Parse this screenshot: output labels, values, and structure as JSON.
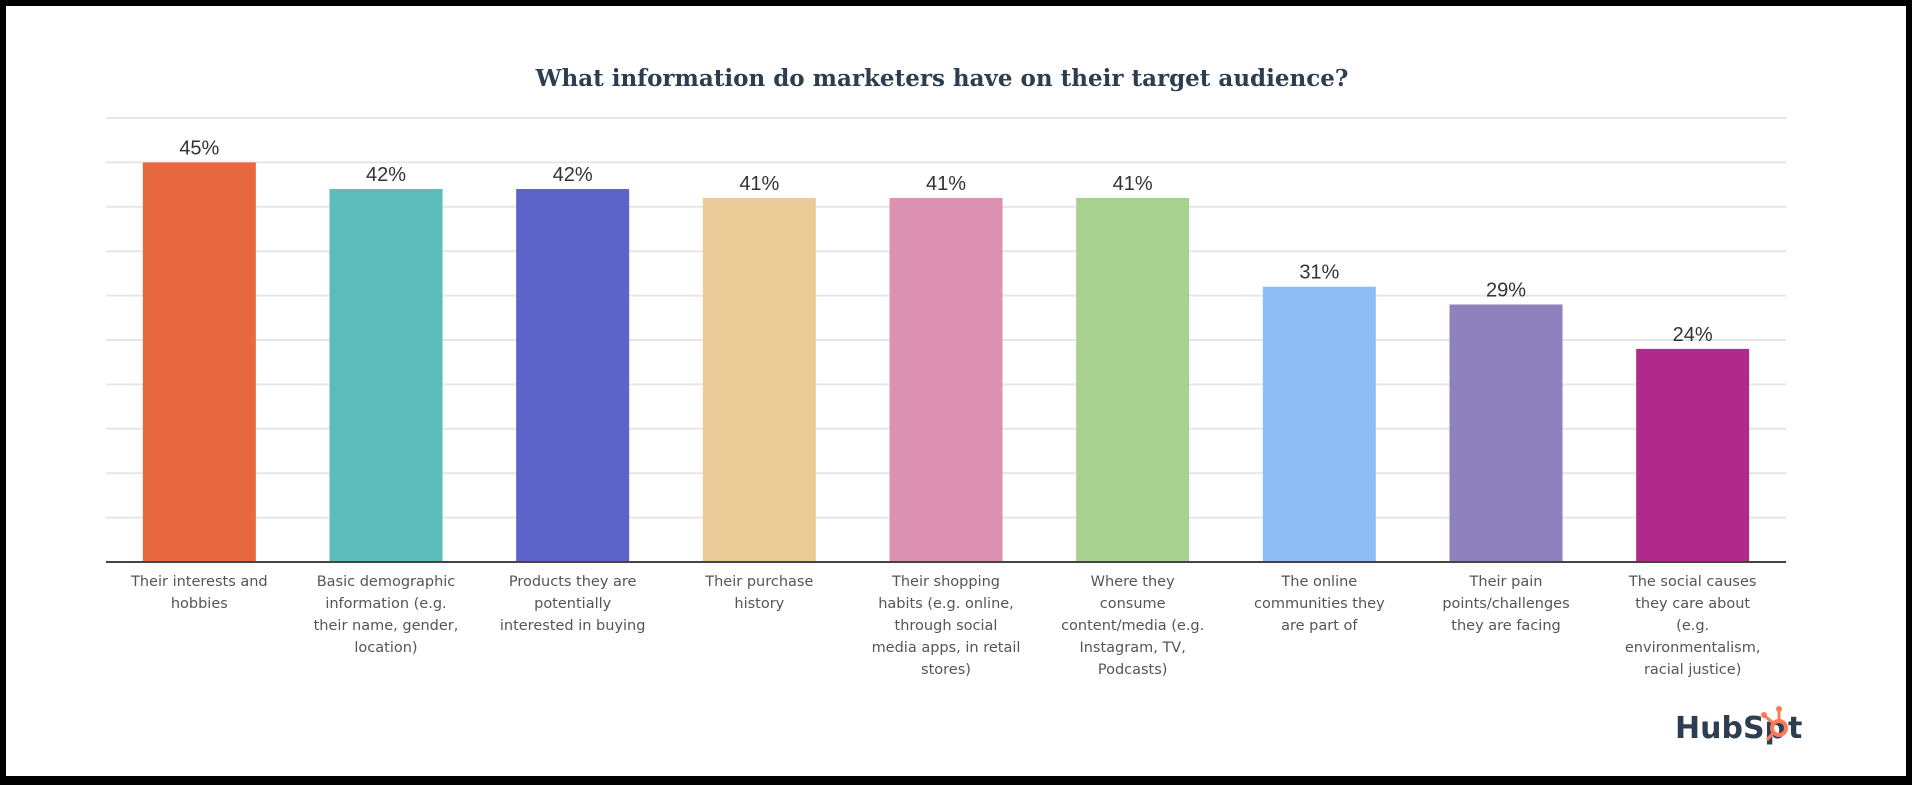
{
  "chart_data": {
    "type": "bar",
    "title": "What information do marketers have on their target audience?",
    "xlabel": "",
    "ylabel": "",
    "ylim": [
      0,
      50
    ],
    "grid": true,
    "categories": [
      [
        "Their interests and",
        "hobbies"
      ],
      [
        "Basic demographic",
        "information (e.g.",
        "their name, gender,",
        "location)"
      ],
      [
        "Products they are",
        "potentially",
        "interested in buying"
      ],
      [
        "Their purchase",
        "history"
      ],
      [
        "Their shopping",
        "habits (e.g. online,",
        "through social",
        "media apps, in retail",
        "stores)"
      ],
      [
        "Where they",
        "consume",
        "content/media (e.g.",
        "Instagram, TV,",
        "Podcasts)"
      ],
      [
        "The online",
        "communities they",
        "are part of"
      ],
      [
        "Their pain",
        "points/challenges",
        "they are facing"
      ],
      [
        "The social causes",
        "they care about",
        "(e.g.",
        "environmentalism,",
        "racial justice)"
      ]
    ],
    "values": [
      45,
      42,
      42,
      41,
      41,
      41,
      31,
      29,
      24
    ],
    "data_labels": [
      "45%",
      "42%",
      "42%",
      "41%",
      "41%",
      "41%",
      "31%",
      "29%",
      "24%"
    ],
    "colors": [
      "#E8683F",
      "#5CBCBA",
      "#5E63C9",
      "#EACA96",
      "#DC91B0",
      "#A8D08F",
      "#8EBDF6",
      "#8E81BD",
      "#B12A8B"
    ]
  },
  "branding": {
    "logo_text": "HubSpot",
    "logo_color": "#FF7A59"
  }
}
